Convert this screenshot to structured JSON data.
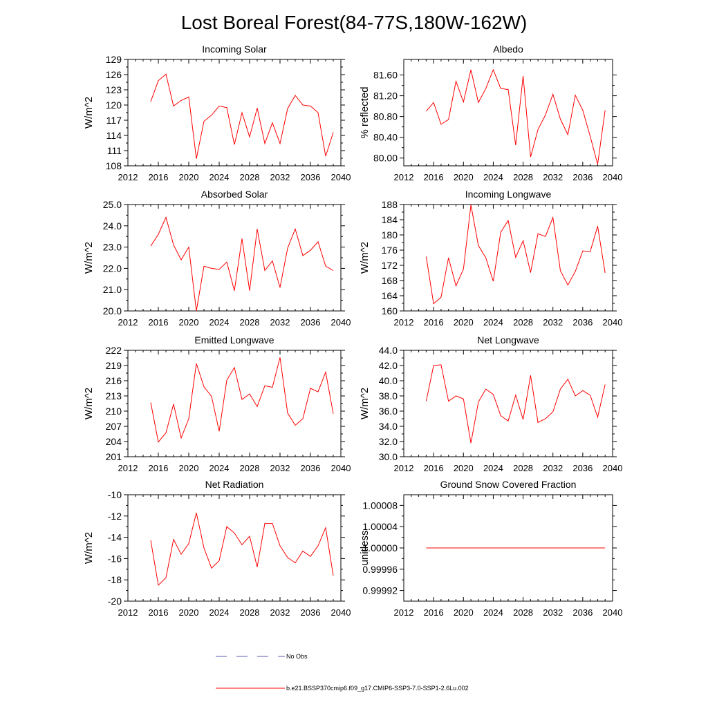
{
  "figure": {
    "title": "Lost Boreal Forest(84-77S,180W-162W)",
    "legend": [
      {
        "label": "No Obs",
        "style": "dashed",
        "color": "#5a5ab4"
      },
      {
        "label": "b.e21.BSSP370cmip6.f09_g17.CMIP6-SSP3-7.0-SSP1-2.6Lu.002",
        "style": "solid",
        "color": "#ff0000"
      }
    ]
  },
  "chart_data": [
    {
      "type": "line",
      "title": "Incoming Solar",
      "xlabel": "",
      "ylabel": "W/m^2",
      "xlim": [
        2012,
        2040
      ],
      "xticks": [
        "2012",
        "2016",
        "2020",
        "2024",
        "2028",
        "2032",
        "2036",
        "2040"
      ],
      "ylim": [
        108,
        129
      ],
      "yticks": [
        "108",
        "111",
        "114",
        "117",
        "120",
        "123",
        "126",
        "129"
      ],
      "series": [
        {
          "color": "#ff0000",
          "x": [
            2015,
            2016,
            2017,
            2018,
            2019,
            2020,
            2021,
            2022,
            2023,
            2024,
            2025,
            2026,
            2027,
            2028,
            2029,
            2030,
            2031,
            2032,
            2033,
            2034,
            2035,
            2036,
            2037,
            2038,
            2039
          ],
          "y": [
            120.7,
            124.8,
            126.1,
            119.8,
            120.9,
            121.6,
            109.4,
            116.8,
            118.0,
            119.8,
            119.5,
            112.2,
            118.5,
            113.7,
            119.4,
            112.4,
            116.5,
            112.4,
            119.3,
            121.9,
            120.0,
            119.8,
            118.5,
            109.9,
            114.6
          ]
        }
      ]
    },
    {
      "type": "line",
      "title": "Albedo",
      "xlabel": "",
      "ylabel": "% reflected",
      "xlim": [
        2012,
        2040
      ],
      "xticks": [
        "2012",
        "2016",
        "2020",
        "2024",
        "2028",
        "2032",
        "2036",
        "2040"
      ],
      "ylim": [
        79.85,
        81.9
      ],
      "yticks": [
        "80.00",
        "80.40",
        "80.80",
        "81.20",
        "81.60"
      ],
      "series": [
        {
          "color": "#ff0000",
          "x": [
            2015,
            2016,
            2017,
            2018,
            2019,
            2020,
            2021,
            2022,
            2023,
            2024,
            2025,
            2026,
            2027,
            2028,
            2029,
            2030,
            2031,
            2032,
            2033,
            2034,
            2035,
            2036,
            2037,
            2038,
            2039
          ],
          "y": [
            80.9,
            81.07,
            80.65,
            80.74,
            81.48,
            81.08,
            81.7,
            81.07,
            81.34,
            81.7,
            81.34,
            81.32,
            80.25,
            81.58,
            80.02,
            80.55,
            80.83,
            81.23,
            80.75,
            80.45,
            81.21,
            80.92,
            80.42,
            79.88,
            80.92
          ]
        }
      ]
    },
    {
      "type": "line",
      "title": "Absorbed Solar",
      "xlabel": "",
      "ylabel": "W/m^2",
      "xlim": [
        2012,
        2040
      ],
      "xticks": [
        "2012",
        "2016",
        "2020",
        "2024",
        "2028",
        "2032",
        "2036",
        "2040"
      ],
      "ylim": [
        20.0,
        25.0
      ],
      "yticks": [
        "20.0",
        "21.0",
        "22.0",
        "23.0",
        "24.0",
        "25.0"
      ],
      "series": [
        {
          "color": "#ff0000",
          "x": [
            2015,
            2016,
            2017,
            2018,
            2019,
            2020,
            2021,
            2022,
            2023,
            2024,
            2025,
            2026,
            2027,
            2028,
            2029,
            2030,
            2031,
            2032,
            2033,
            2034,
            2035,
            2036,
            2037,
            2038,
            2039
          ],
          "y": [
            23.05,
            23.6,
            24.4,
            23.1,
            22.4,
            23.0,
            20.0,
            22.1,
            22.0,
            21.95,
            22.3,
            20.95,
            23.4,
            20.95,
            23.85,
            21.9,
            22.35,
            21.1,
            22.95,
            23.85,
            22.6,
            22.85,
            23.25,
            22.1,
            21.9
          ]
        }
      ]
    },
    {
      "type": "line",
      "title": "Incoming Longwave",
      "xlabel": "",
      "ylabel": "W/m^2",
      "xlim": [
        2012,
        2040
      ],
      "xticks": [
        "2012",
        "2016",
        "2020",
        "2024",
        "2028",
        "2032",
        "2036",
        "2040"
      ],
      "ylim": [
        160,
        188
      ],
      "yticks": [
        "160",
        "164",
        "168",
        "172",
        "176",
        "180",
        "184",
        "188"
      ],
      "series": [
        {
          "color": "#ff0000",
          "x": [
            2015,
            2016,
            2017,
            2018,
            2019,
            2020,
            2021,
            2022,
            2023,
            2024,
            2025,
            2026,
            2027,
            2028,
            2029,
            2030,
            2031,
            2032,
            2033,
            2034,
            2035,
            2036,
            2037,
            2038,
            2039
          ],
          "y": [
            174.3,
            161.9,
            163.6,
            174.0,
            166.6,
            171.0,
            187.9,
            177.2,
            174.0,
            167.8,
            180.7,
            183.8,
            174.1,
            178.5,
            170.1,
            180.3,
            179.6,
            184.6,
            170.6,
            166.8,
            170.4,
            175.8,
            175.6,
            182.3,
            170.0
          ]
        }
      ]
    },
    {
      "type": "line",
      "title": "Emitted Longwave",
      "xlabel": "",
      "ylabel": "W/m^2",
      "xlim": [
        2012,
        2040
      ],
      "xticks": [
        "2012",
        "2016",
        "2020",
        "2024",
        "2028",
        "2032",
        "2036",
        "2040"
      ],
      "ylim": [
        201,
        222
      ],
      "yticks": [
        "201",
        "204",
        "207",
        "210",
        "213",
        "216",
        "219",
        "222"
      ],
      "series": [
        {
          "color": "#ff0000",
          "x": [
            2015,
            2016,
            2017,
            2018,
            2019,
            2020,
            2021,
            2022,
            2023,
            2024,
            2025,
            2026,
            2027,
            2028,
            2029,
            2030,
            2031,
            2032,
            2033,
            2034,
            2035,
            2036,
            2037,
            2038,
            2039
          ],
          "y": [
            211.7,
            203.9,
            205.7,
            211.4,
            204.7,
            208.5,
            219.4,
            214.8,
            212.9,
            206.0,
            216.1,
            218.6,
            212.3,
            213.4,
            210.9,
            215.0,
            214.7,
            220.6,
            209.6,
            207.2,
            208.5,
            214.5,
            213.8,
            217.7,
            209.5
          ]
        }
      ]
    },
    {
      "type": "line",
      "title": "Net Longwave",
      "xlabel": "",
      "ylabel": "W/m^2",
      "xlim": [
        2012,
        2040
      ],
      "xticks": [
        "2012",
        "2016",
        "2020",
        "2024",
        "2028",
        "2032",
        "2036",
        "2040"
      ],
      "ylim": [
        30.0,
        44.0
      ],
      "yticks": [
        "30.0",
        "32.0",
        "34.0",
        "36.0",
        "38.0",
        "40.0",
        "42.0",
        "44.0"
      ],
      "series": [
        {
          "color": "#ff0000",
          "x": [
            2015,
            2016,
            2017,
            2018,
            2019,
            2020,
            2021,
            2022,
            2023,
            2024,
            2025,
            2026,
            2027,
            2028,
            2029,
            2030,
            2031,
            2032,
            2033,
            2034,
            2035,
            2036,
            2037,
            2038,
            2039
          ],
          "y": [
            37.3,
            42.0,
            42.1,
            37.3,
            38.0,
            37.6,
            31.8,
            37.2,
            38.9,
            38.2,
            35.4,
            34.7,
            38.1,
            34.9,
            40.7,
            34.5,
            35.0,
            35.9,
            38.9,
            40.2,
            38.0,
            38.7,
            38.1,
            35.2,
            39.5
          ]
        }
      ]
    },
    {
      "type": "line",
      "title": "Net Radiation",
      "xlabel": "",
      "ylabel": "W/m^2",
      "xlim": [
        2012,
        2040
      ],
      "xticks": [
        "2012",
        "2016",
        "2020",
        "2024",
        "2028",
        "2032",
        "2036",
        "2040"
      ],
      "ylim": [
        -20,
        -10
      ],
      "yticks": [
        "-20",
        "-18",
        "-16",
        "-14",
        "-12",
        "-10"
      ],
      "series": [
        {
          "color": "#ff0000",
          "x": [
            2015,
            2016,
            2017,
            2018,
            2019,
            2020,
            2021,
            2022,
            2023,
            2024,
            2025,
            2026,
            2027,
            2028,
            2029,
            2030,
            2031,
            2032,
            2033,
            2034,
            2035,
            2036,
            2037,
            2038,
            2039
          ],
          "y": [
            -14.3,
            -18.5,
            -17.8,
            -14.2,
            -15.6,
            -14.6,
            -11.7,
            -15.0,
            -16.9,
            -16.2,
            -13.0,
            -13.6,
            -14.7,
            -13.9,
            -16.8,
            -12.7,
            -12.7,
            -14.8,
            -15.9,
            -16.4,
            -15.3,
            -15.8,
            -14.8,
            -13.1,
            -17.6
          ]
        }
      ]
    },
    {
      "type": "line",
      "title": "Ground Snow Covered Fraction",
      "xlabel": "",
      "ylabel": "unitless",
      "xlim": [
        2012,
        2040
      ],
      "xticks": [
        "2012",
        "2016",
        "2020",
        "2024",
        "2028",
        "2032",
        "2036",
        "2040"
      ],
      "ylim": [
        0.9999,
        1.0001
      ],
      "yticks": [
        "0.99992",
        "0.99996",
        "1.00000",
        "1.00004",
        "1.00008"
      ],
      "series": [
        {
          "color": "#ff0000",
          "x": [
            2015,
            2016,
            2017,
            2018,
            2019,
            2020,
            2021,
            2022,
            2023,
            2024,
            2025,
            2026,
            2027,
            2028,
            2029,
            2030,
            2031,
            2032,
            2033,
            2034,
            2035,
            2036,
            2037,
            2038,
            2039
          ],
          "y": [
            1,
            1,
            1,
            1,
            1,
            1,
            1,
            1,
            1,
            1,
            1,
            1,
            1,
            1,
            1,
            1,
            1,
            1,
            1,
            1,
            1,
            1,
            1,
            1,
            1
          ]
        }
      ]
    }
  ]
}
